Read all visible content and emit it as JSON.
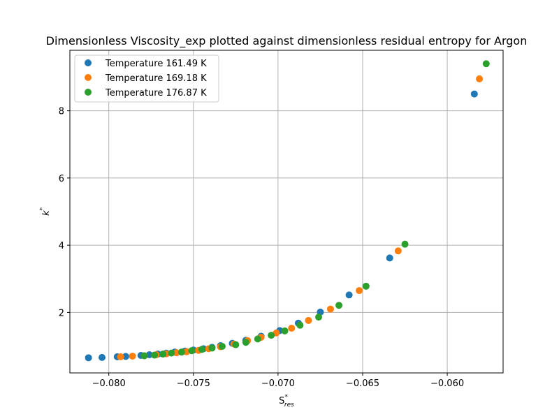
{
  "chart_data": {
    "type": "scatter",
    "title": "Dimensionless Viscosity_exp plotted against dimensionless residual entropy for Argon",
    "xlabel": {
      "main": "S",
      "sup": "*",
      "sub": "res"
    },
    "ylabel": {
      "main": "k",
      "sup": "*"
    },
    "xlim": [
      -0.0823,
      -0.0567
    ],
    "ylim": [
      0.2,
      9.8
    ],
    "xticks": [
      -0.08,
      -0.075,
      -0.07,
      -0.065,
      -0.06
    ],
    "xtick_labels": [
      "−0.080",
      "−0.075",
      "−0.070",
      "−0.065",
      "−0.060"
    ],
    "yticks": [
      2,
      4,
      6,
      8
    ],
    "ytick_labels": [
      "2",
      "4",
      "6",
      "8"
    ],
    "grid": true,
    "legend_position": "top-left",
    "series": [
      {
        "name": "Temperature 161.49 K",
        "color": "#1f77b4",
        "x": [
          -0.0812,
          -0.0804,
          -0.0795,
          -0.079,
          -0.0781,
          -0.0776,
          -0.0771,
          -0.0766,
          -0.0761,
          -0.0755,
          -0.075,
          -0.0744,
          -0.0739,
          -0.0734,
          -0.0727,
          -0.0719,
          -0.071,
          -0.0699,
          -0.0688,
          -0.0675,
          -0.0658,
          -0.0634,
          -0.0584
        ],
        "y": [
          0.65,
          0.66,
          0.68,
          0.69,
          0.72,
          0.74,
          0.76,
          0.79,
          0.82,
          0.85,
          0.88,
          0.92,
          0.96,
          1.01,
          1.08,
          1.17,
          1.29,
          1.46,
          1.68,
          2.01,
          2.52,
          3.62,
          8.5
        ]
      },
      {
        "name": "Temperature 169.18 K",
        "color": "#ff7f0e",
        "x": [
          -0.0793,
          -0.0786,
          -0.0779,
          -0.0772,
          -0.0766,
          -0.076,
          -0.0754,
          -0.0747,
          -0.0741,
          -0.0734,
          -0.0726,
          -0.0718,
          -0.071,
          -0.0701,
          -0.0692,
          -0.0682,
          -0.0669,
          -0.0652,
          -0.0629,
          -0.0581
        ],
        "y": [
          0.68,
          0.7,
          0.71,
          0.74,
          0.77,
          0.8,
          0.83,
          0.87,
          0.92,
          0.98,
          1.06,
          1.16,
          1.26,
          1.39,
          1.53,
          1.76,
          2.1,
          2.65,
          3.83,
          8.95
        ]
      },
      {
        "name": "Temperature 176.87 K",
        "color": "#2ca02c",
        "x": [
          -0.0779,
          -0.0773,
          -0.0768,
          -0.0763,
          -0.0757,
          -0.0751,
          -0.0745,
          -0.0739,
          -0.0733,
          -0.0725,
          -0.0719,
          -0.0712,
          -0.0704,
          -0.0696,
          -0.0687,
          -0.0676,
          -0.0664,
          -0.0648,
          -0.0625,
          -0.0577
        ],
        "y": [
          0.71,
          0.73,
          0.76,
          0.79,
          0.82,
          0.86,
          0.9,
          0.94,
          0.99,
          1.04,
          1.11,
          1.21,
          1.32,
          1.45,
          1.62,
          1.86,
          2.21,
          2.78,
          4.03,
          9.4
        ]
      }
    ]
  }
}
